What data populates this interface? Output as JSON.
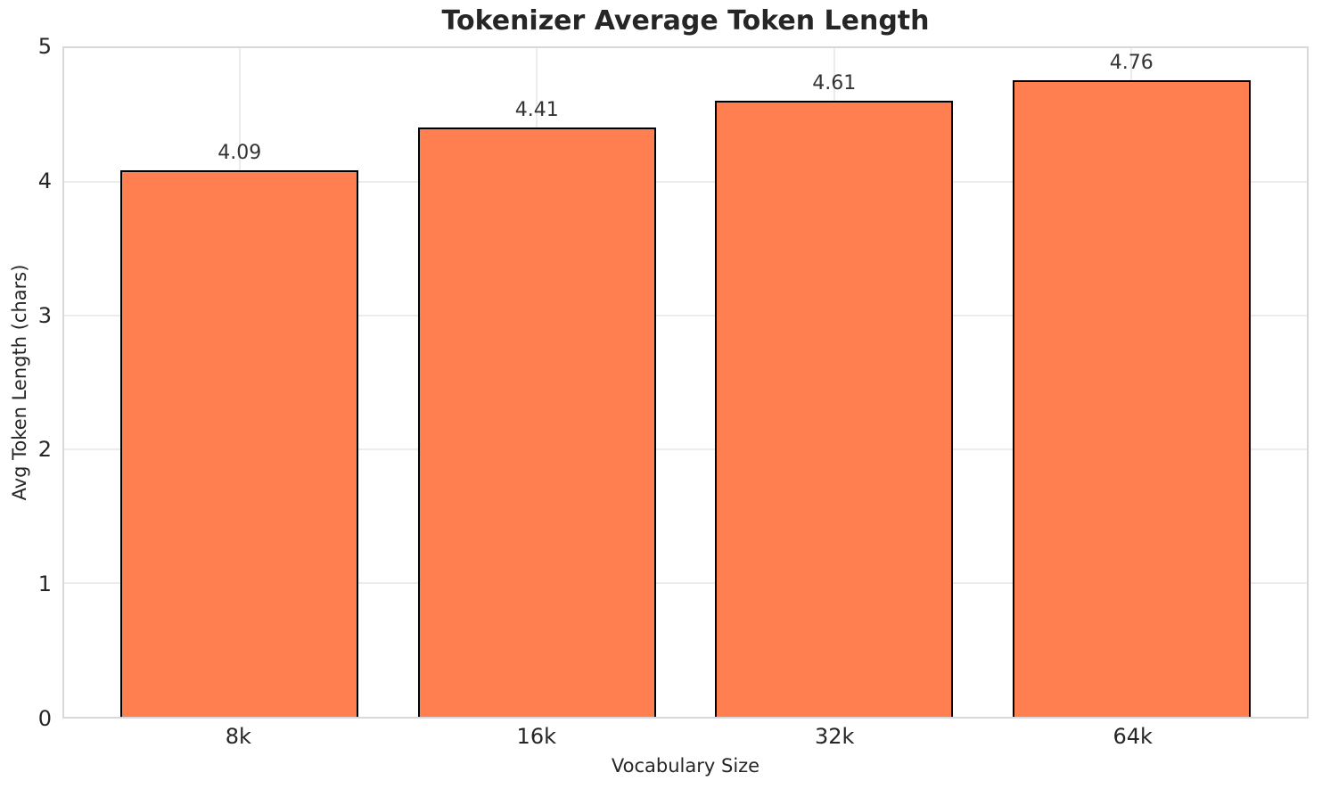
{
  "chart_data": {
    "type": "bar",
    "title": "Tokenizer Average Token Length",
    "xlabel": "Vocabulary Size",
    "ylabel": "Avg Token Length (chars)",
    "categories": [
      "8k",
      "16k",
      "32k",
      "64k"
    ],
    "values": [
      4.09,
      4.41,
      4.61,
      4.76
    ],
    "value_labels": [
      "4.09",
      "4.41",
      "4.61",
      "4.76"
    ],
    "ylim": [
      0,
      5
    ],
    "yticks": [
      0,
      1,
      2,
      3,
      4,
      5
    ],
    "grid": true,
    "legend": "none",
    "bar_color": "#ff7f50",
    "bar_edge_color": "#000000",
    "grid_color": "#ececec",
    "spine_color": "#d8d8d8",
    "text_color": "#262626"
  }
}
